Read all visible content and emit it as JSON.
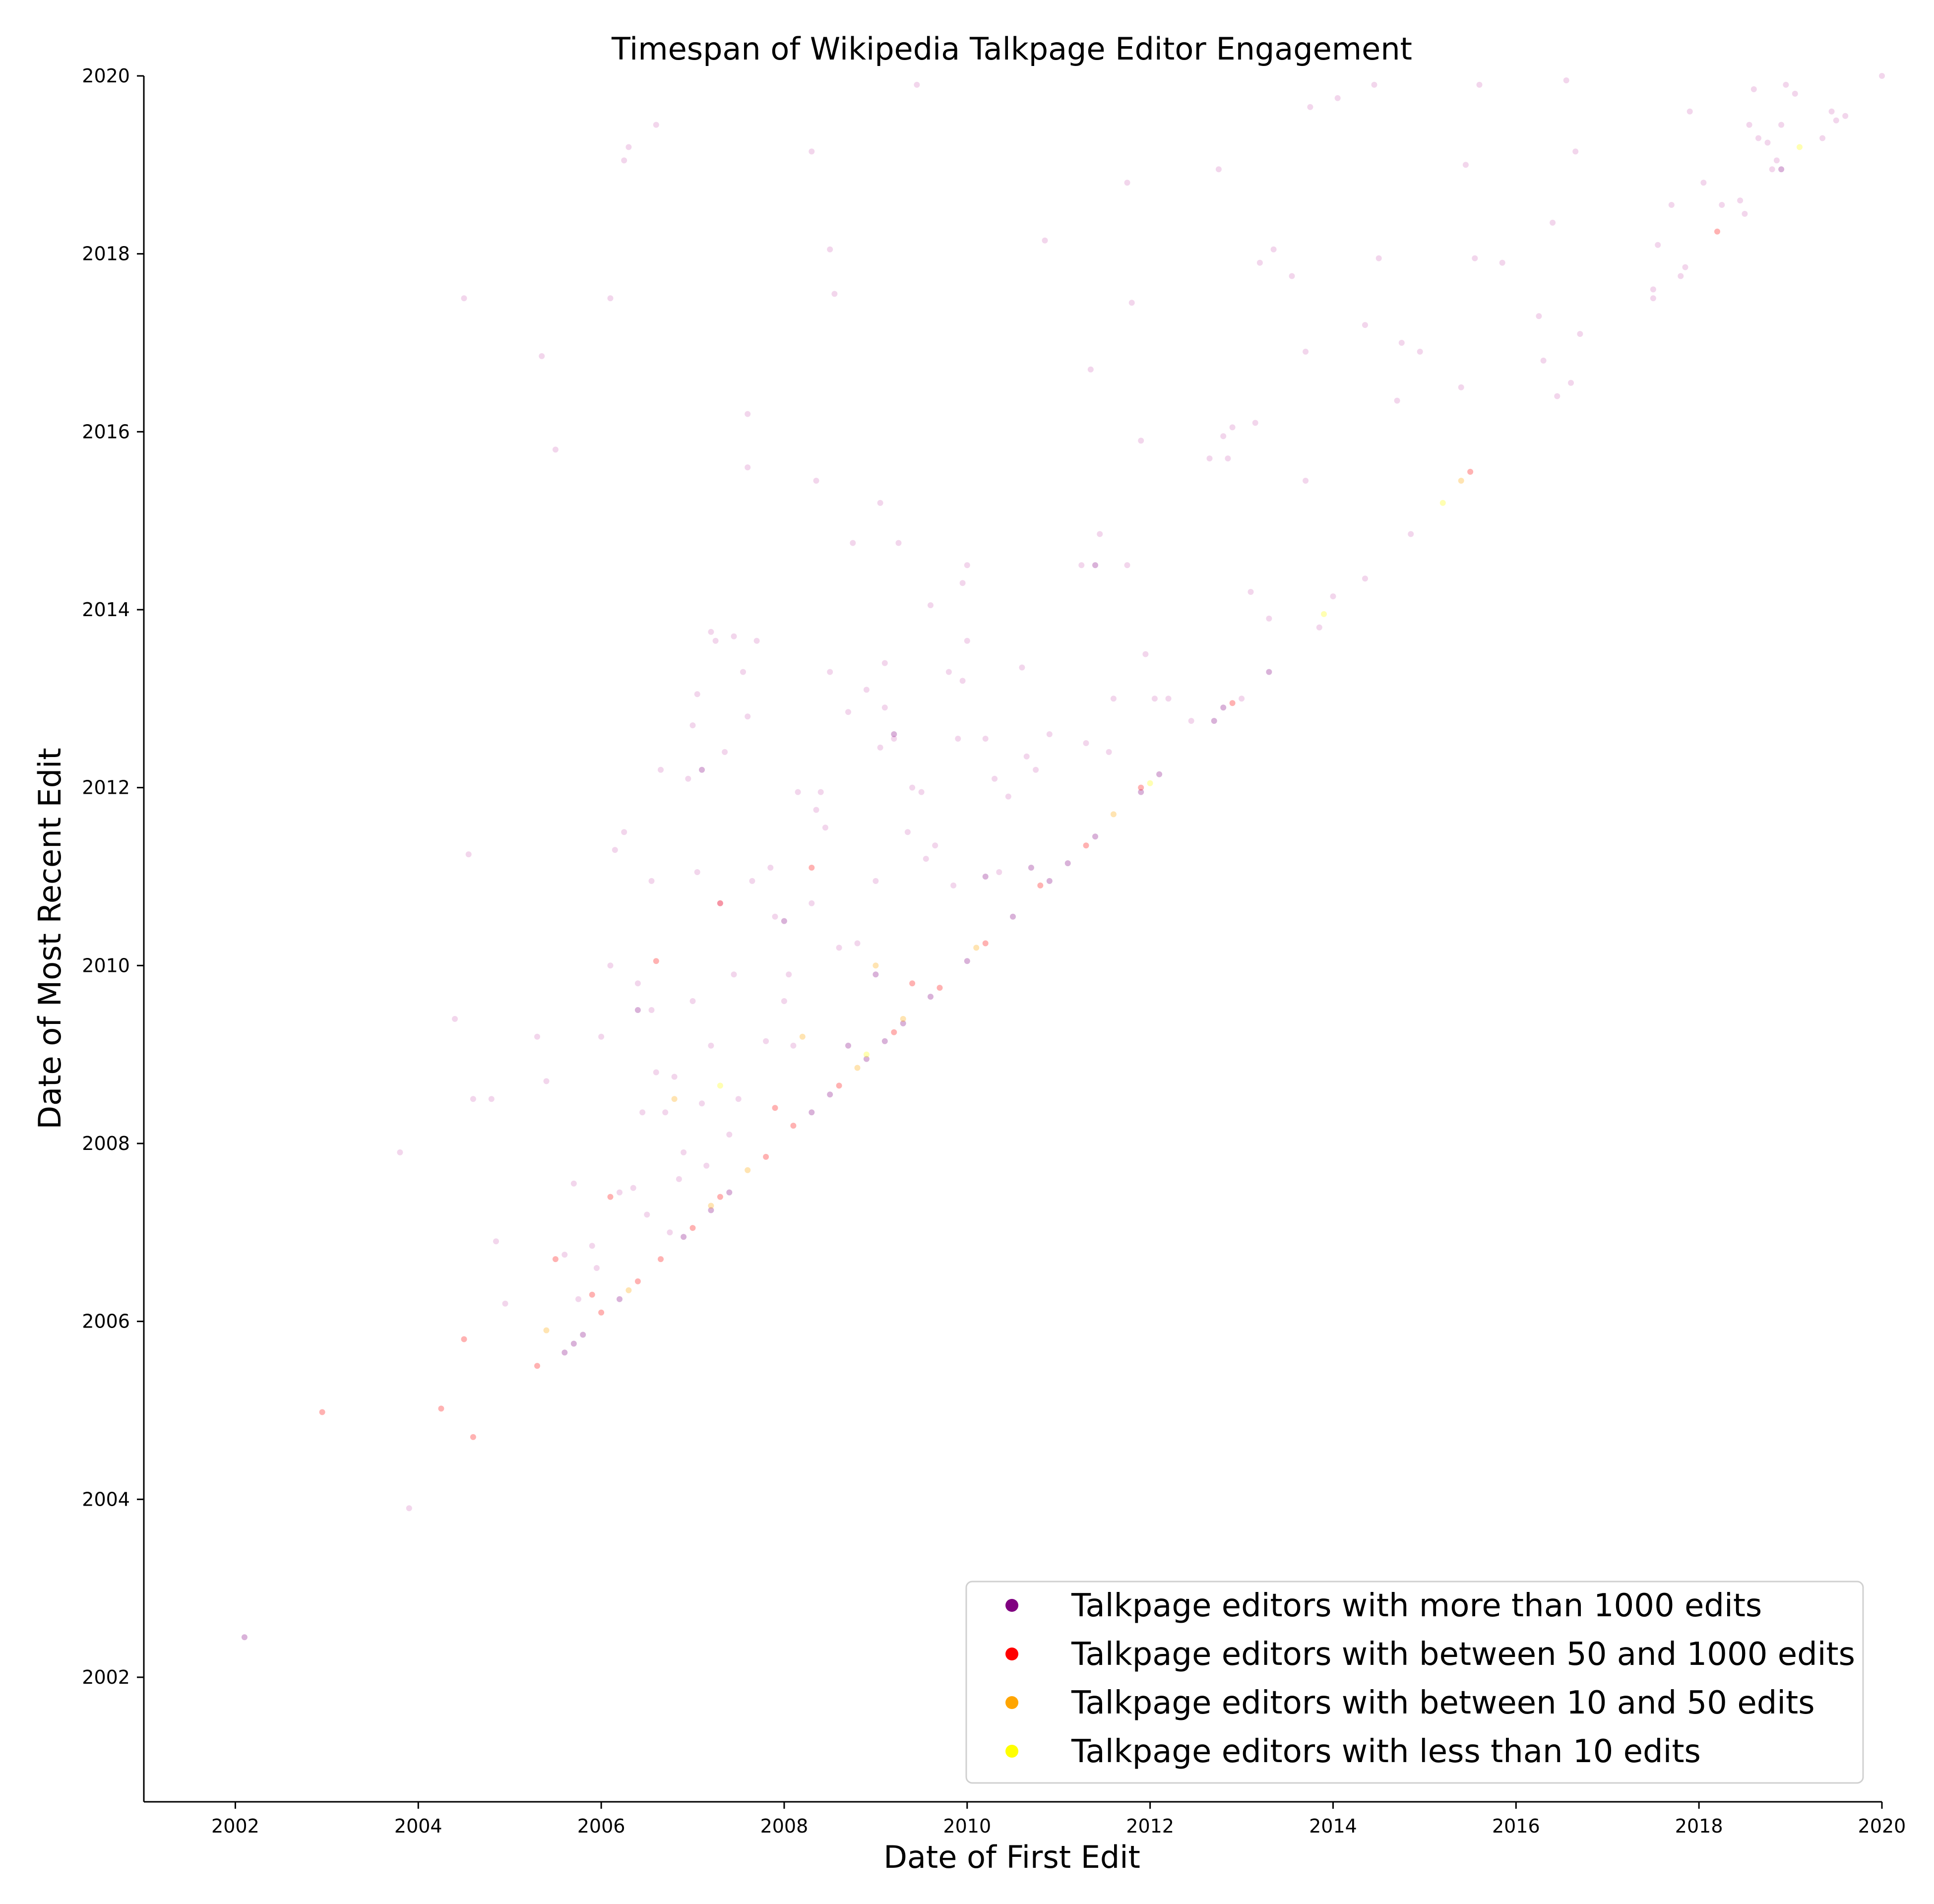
{
  "chart_data": {
    "type": "scatter",
    "title": "Timespan of Wikipedia Talkpage Editor Engagement",
    "xlabel": "Date of First Edit",
    "ylabel": "Date of Most Recent Edit",
    "xlim": [
      2001,
      2020
    ],
    "ylim": [
      2000.6,
      2020
    ],
    "x_ticks": [
      "2002",
      "2004",
      "2006",
      "2008",
      "2010",
      "2012",
      "2014",
      "2016",
      "2018",
      "2020"
    ],
    "y_ticks": [
      "2002",
      "2004",
      "2006",
      "2008",
      "2010",
      "2012",
      "2014",
      "2016",
      "2018",
      "2020"
    ],
    "grid": false,
    "legend_position": "lower-right",
    "series": [
      {
        "name": "Talkpage editors with more than 1000 edits",
        "color": "#800080",
        "points": [
          [
            2002.1,
            2002.45
          ],
          [
            2005.6,
            2005.65
          ],
          [
            2005.7,
            2005.75
          ],
          [
            2005.8,
            2005.85
          ],
          [
            2006.2,
            2006.25
          ],
          [
            2006.9,
            2006.95
          ],
          [
            2007.2,
            2007.25
          ],
          [
            2007.4,
            2007.45
          ],
          [
            2008.3,
            2008.35
          ],
          [
            2008.5,
            2008.55
          ],
          [
            2008.9,
            2008.95
          ],
          [
            2009.1,
            2009.15
          ],
          [
            2009.3,
            2009.35
          ],
          [
            2009.6,
            2009.65
          ],
          [
            2010.0,
            2010.05
          ],
          [
            2010.5,
            2010.55
          ],
          [
            2010.9,
            2010.95
          ],
          [
            2011.1,
            2011.15
          ],
          [
            2011.4,
            2011.45
          ],
          [
            2011.9,
            2011.95
          ],
          [
            2012.1,
            2012.15
          ],
          [
            2012.7,
            2012.75
          ],
          [
            2013.3,
            2013.3
          ],
          [
            2018.9,
            2018.95
          ],
          [
            2006.4,
            2009.5
          ],
          [
            2007.1,
            2012.2
          ],
          [
            2008.0,
            2010.5
          ],
          [
            2009.0,
            2009.9
          ],
          [
            2010.2,
            2011.0
          ],
          [
            2011.4,
            2014.5
          ],
          [
            2012.8,
            2012.9
          ],
          [
            2009.2,
            2012.6
          ],
          [
            2008.7,
            2009.1
          ],
          [
            2010.7,
            2011.1
          ]
        ]
      },
      {
        "name": "Talkpage editors with between 50 and 1000 edits",
        "color": "#ff0000",
        "points": [
          [
            2002.95,
            2004.98
          ],
          [
            2004.25,
            2005.02
          ],
          [
            2004.6,
            2004.7
          ],
          [
            2005.3,
            2005.5
          ],
          [
            2006.0,
            2006.1
          ],
          [
            2006.4,
            2006.45
          ],
          [
            2006.65,
            2006.7
          ],
          [
            2007.0,
            2007.05
          ],
          [
            2007.3,
            2007.4
          ],
          [
            2007.8,
            2007.85
          ],
          [
            2008.1,
            2008.2
          ],
          [
            2008.6,
            2008.65
          ],
          [
            2009.2,
            2009.25
          ],
          [
            2009.7,
            2009.75
          ],
          [
            2010.2,
            2010.25
          ],
          [
            2010.8,
            2010.9
          ],
          [
            2011.3,
            2011.35
          ],
          [
            2011.9,
            2012.0
          ],
          [
            2012.9,
            2012.95
          ],
          [
            2015.5,
            2015.55
          ],
          [
            2018.2,
            2018.25
          ],
          [
            2006.6,
            2010.05
          ],
          [
            2007.3,
            2010.7
          ],
          [
            2008.3,
            2011.1
          ],
          [
            2009.4,
            2009.8
          ],
          [
            2005.9,
            2006.3
          ],
          [
            2004.5,
            2005.8
          ],
          [
            2005.5,
            2006.7
          ],
          [
            2006.1,
            2007.4
          ],
          [
            2007.9,
            2008.4
          ]
        ]
      },
      {
        "name": "Talkpage editors with between 10 and 50 edits",
        "color": "#ffa500",
        "points": [
          [
            2007.2,
            2007.3
          ],
          [
            2007.6,
            2007.7
          ],
          [
            2008.8,
            2008.85
          ],
          [
            2009.3,
            2009.4
          ],
          [
            2010.1,
            2010.2
          ],
          [
            2006.8,
            2008.5
          ],
          [
            2008.2,
            2009.2
          ],
          [
            2005.4,
            2005.9
          ],
          [
            2006.3,
            2006.35
          ],
          [
            2011.6,
            2011.7
          ],
          [
            2015.4,
            2015.45
          ],
          [
            2009.0,
            2010.0
          ]
        ]
      },
      {
        "name": "Talkpage editors with less than 10 edits",
        "color": "#ffff00",
        "points": [
          [
            2007.3,
            2008.65
          ],
          [
            2013.9,
            2013.95
          ],
          [
            2015.2,
            2015.2
          ],
          [
            2019.1,
            2019.2
          ],
          [
            2008.9,
            2009.0
          ],
          [
            2012.0,
            2012.05
          ]
        ]
      }
    ],
    "background_points": [
      [
        2003.8,
        2007.9
      ],
      [
        2003.9,
        2003.9
      ],
      [
        2004.4,
        2009.4
      ],
      [
        2004.5,
        2017.5
      ],
      [
        2004.55,
        2011.25
      ],
      [
        2004.6,
        2008.5
      ],
      [
        2004.8,
        2008.5
      ],
      [
        2004.85,
        2006.9
      ],
      [
        2004.95,
        2006.2
      ],
      [
        2005.3,
        2009.2
      ],
      [
        2005.35,
        2016.85
      ],
      [
        2005.4,
        2008.7
      ],
      [
        2005.5,
        2015.8
      ],
      [
        2005.6,
        2006.75
      ],
      [
        2005.7,
        2007.55
      ],
      [
        2005.75,
        2006.25
      ],
      [
        2005.9,
        2006.85
      ],
      [
        2005.95,
        2006.6
      ],
      [
        2006.0,
        2009.2
      ],
      [
        2006.1,
        2010.0
      ],
      [
        2006.1,
        2017.5
      ],
      [
        2006.15,
        2011.3
      ],
      [
        2006.2,
        2007.45
      ],
      [
        2006.25,
        2011.5
      ],
      [
        2006.25,
        2019.05
      ],
      [
        2006.3,
        2019.2
      ],
      [
        2006.35,
        2007.5
      ],
      [
        2006.4,
        2009.8
      ],
      [
        2006.45,
        2008.35
      ],
      [
        2006.5,
        2007.2
      ],
      [
        2006.55,
        2009.5
      ],
      [
        2006.55,
        2010.95
      ],
      [
        2006.6,
        2008.8
      ],
      [
        2006.6,
        2019.45
      ],
      [
        2006.65,
        2012.2
      ],
      [
        2006.7,
        2008.35
      ],
      [
        2006.75,
        2007.0
      ],
      [
        2006.8,
        2008.75
      ],
      [
        2006.85,
        2007.6
      ],
      [
        2006.9,
        2007.9
      ],
      [
        2006.95,
        2012.1
      ],
      [
        2007.0,
        2009.6
      ],
      [
        2007.0,
        2012.7
      ],
      [
        2007.05,
        2011.05
      ],
      [
        2007.05,
        2013.05
      ],
      [
        2007.1,
        2008.45
      ],
      [
        2007.15,
        2007.75
      ],
      [
        2007.2,
        2009.1
      ],
      [
        2007.2,
        2013.75
      ],
      [
        2007.25,
        2013.65
      ],
      [
        2007.3,
        2010.7
      ],
      [
        2007.35,
        2012.4
      ],
      [
        2007.4,
        2008.1
      ],
      [
        2007.45,
        2009.9
      ],
      [
        2007.45,
        2013.7
      ],
      [
        2007.5,
        2008.5
      ],
      [
        2007.55,
        2013.3
      ],
      [
        2007.6,
        2012.8
      ],
      [
        2007.6,
        2016.2
      ],
      [
        2007.6,
        2015.6
      ],
      [
        2007.65,
        2010.95
      ],
      [
        2007.7,
        2013.65
      ],
      [
        2007.8,
        2009.15
      ],
      [
        2007.85,
        2011.1
      ],
      [
        2007.9,
        2010.55
      ],
      [
        2008.0,
        2009.6
      ],
      [
        2008.05,
        2009.9
      ],
      [
        2008.1,
        2009.1
      ],
      [
        2008.15,
        2011.95
      ],
      [
        2008.3,
        2019.15
      ],
      [
        2008.3,
        2010.7
      ],
      [
        2008.35,
        2011.75
      ],
      [
        2008.35,
        2015.45
      ],
      [
        2008.4,
        2011.95
      ],
      [
        2008.45,
        2011.55
      ],
      [
        2008.5,
        2013.3
      ],
      [
        2008.5,
        2018.05
      ],
      [
        2008.55,
        2017.55
      ],
      [
        2008.6,
        2010.2
      ],
      [
        2008.7,
        2012.85
      ],
      [
        2008.75,
        2014.75
      ],
      [
        2008.8,
        2010.25
      ],
      [
        2008.9,
        2013.1
      ],
      [
        2009.0,
        2010.95
      ],
      [
        2009.05,
        2012.45
      ],
      [
        2009.05,
        2015.2
      ],
      [
        2009.1,
        2012.9
      ],
      [
        2009.1,
        2013.4
      ],
      [
        2009.2,
        2012.55
      ],
      [
        2009.25,
        2014.75
      ],
      [
        2009.35,
        2011.5
      ],
      [
        2009.4,
        2012.0
      ],
      [
        2009.45,
        2019.9
      ],
      [
        2009.5,
        2011.95
      ],
      [
        2009.55,
        2011.2
      ],
      [
        2009.6,
        2014.05
      ],
      [
        2009.65,
        2011.35
      ],
      [
        2009.8,
        2013.3
      ],
      [
        2009.85,
        2010.9
      ],
      [
        2009.9,
        2012.55
      ],
      [
        2009.95,
        2013.2
      ],
      [
        2009.95,
        2014.3
      ],
      [
        2010.0,
        2014.5
      ],
      [
        2010.0,
        2013.65
      ],
      [
        2010.2,
        2012.55
      ],
      [
        2010.3,
        2012.1
      ],
      [
        2010.35,
        2011.05
      ],
      [
        2010.45,
        2011.9
      ],
      [
        2010.6,
        2013.35
      ],
      [
        2010.65,
        2012.35
      ],
      [
        2010.75,
        2012.2
      ],
      [
        2010.85,
        2018.15
      ],
      [
        2010.9,
        2012.6
      ],
      [
        2011.25,
        2014.5
      ],
      [
        2011.3,
        2012.5
      ],
      [
        2011.35,
        2016.7
      ],
      [
        2011.45,
        2014.85
      ],
      [
        2011.55,
        2012.4
      ],
      [
        2011.6,
        2013.0
      ],
      [
        2011.75,
        2018.8
      ],
      [
        2011.75,
        2014.5
      ],
      [
        2011.8,
        2017.45
      ],
      [
        2011.9,
        2015.9
      ],
      [
        2011.95,
        2013.5
      ],
      [
        2012.05,
        2013.0
      ],
      [
        2012.2,
        2013.0
      ],
      [
        2012.45,
        2012.75
      ],
      [
        2012.65,
        2015.7
      ],
      [
        2012.75,
        2018.95
      ],
      [
        2012.8,
        2015.95
      ],
      [
        2012.85,
        2015.7
      ],
      [
        2012.9,
        2016.05
      ],
      [
        2013.0,
        2013.0
      ],
      [
        2013.1,
        2014.2
      ],
      [
        2013.15,
        2016.1
      ],
      [
        2013.2,
        2017.9
      ],
      [
        2013.3,
        2013.9
      ],
      [
        2013.35,
        2018.05
      ],
      [
        2013.55,
        2017.75
      ],
      [
        2013.7,
        2015.45
      ],
      [
        2013.7,
        2016.9
      ],
      [
        2013.75,
        2019.65
      ],
      [
        2013.85,
        2013.8
      ],
      [
        2014.0,
        2014.15
      ],
      [
        2014.05,
        2019.75
      ],
      [
        2014.35,
        2017.2
      ],
      [
        2014.35,
        2014.35
      ],
      [
        2014.45,
        2019.9
      ],
      [
        2014.5,
        2017.95
      ],
      [
        2014.7,
        2016.35
      ],
      [
        2014.75,
        2017.0
      ],
      [
        2014.85,
        2014.85
      ],
      [
        2014.95,
        2016.9
      ],
      [
        2015.4,
        2016.5
      ],
      [
        2015.45,
        2019.0
      ],
      [
        2015.55,
        2017.95
      ],
      [
        2015.6,
        2019.9
      ],
      [
        2015.85,
        2017.9
      ],
      [
        2016.25,
        2017.3
      ],
      [
        2016.3,
        2016.8
      ],
      [
        2016.4,
        2018.35
      ],
      [
        2016.45,
        2016.4
      ],
      [
        2016.55,
        2019.95
      ],
      [
        2016.6,
        2016.55
      ],
      [
        2016.65,
        2019.15
      ],
      [
        2016.7,
        2017.1
      ],
      [
        2017.5,
        2017.6
      ],
      [
        2017.5,
        2017.5
      ],
      [
        2017.55,
        2018.1
      ],
      [
        2017.7,
        2018.55
      ],
      [
        2017.8,
        2017.75
      ],
      [
        2017.85,
        2017.85
      ],
      [
        2017.9,
        2019.6
      ],
      [
        2018.05,
        2018.8
      ],
      [
        2018.25,
        2018.55
      ],
      [
        2018.45,
        2018.6
      ],
      [
        2018.5,
        2018.45
      ],
      [
        2018.55,
        2019.45
      ],
      [
        2018.6,
        2019.85
      ],
      [
        2018.65,
        2019.3
      ],
      [
        2018.75,
        2019.25
      ],
      [
        2018.8,
        2018.95
      ],
      [
        2018.85,
        2019.05
      ],
      [
        2018.9,
        2019.45
      ],
      [
        2018.95,
        2019.9
      ],
      [
        2019.05,
        2019.8
      ],
      [
        2019.35,
        2019.3
      ],
      [
        2019.45,
        2019.6
      ],
      [
        2019.5,
        2019.5
      ],
      [
        2019.6,
        2019.55
      ],
      [
        2020.0,
        2020.0
      ]
    ]
  }
}
